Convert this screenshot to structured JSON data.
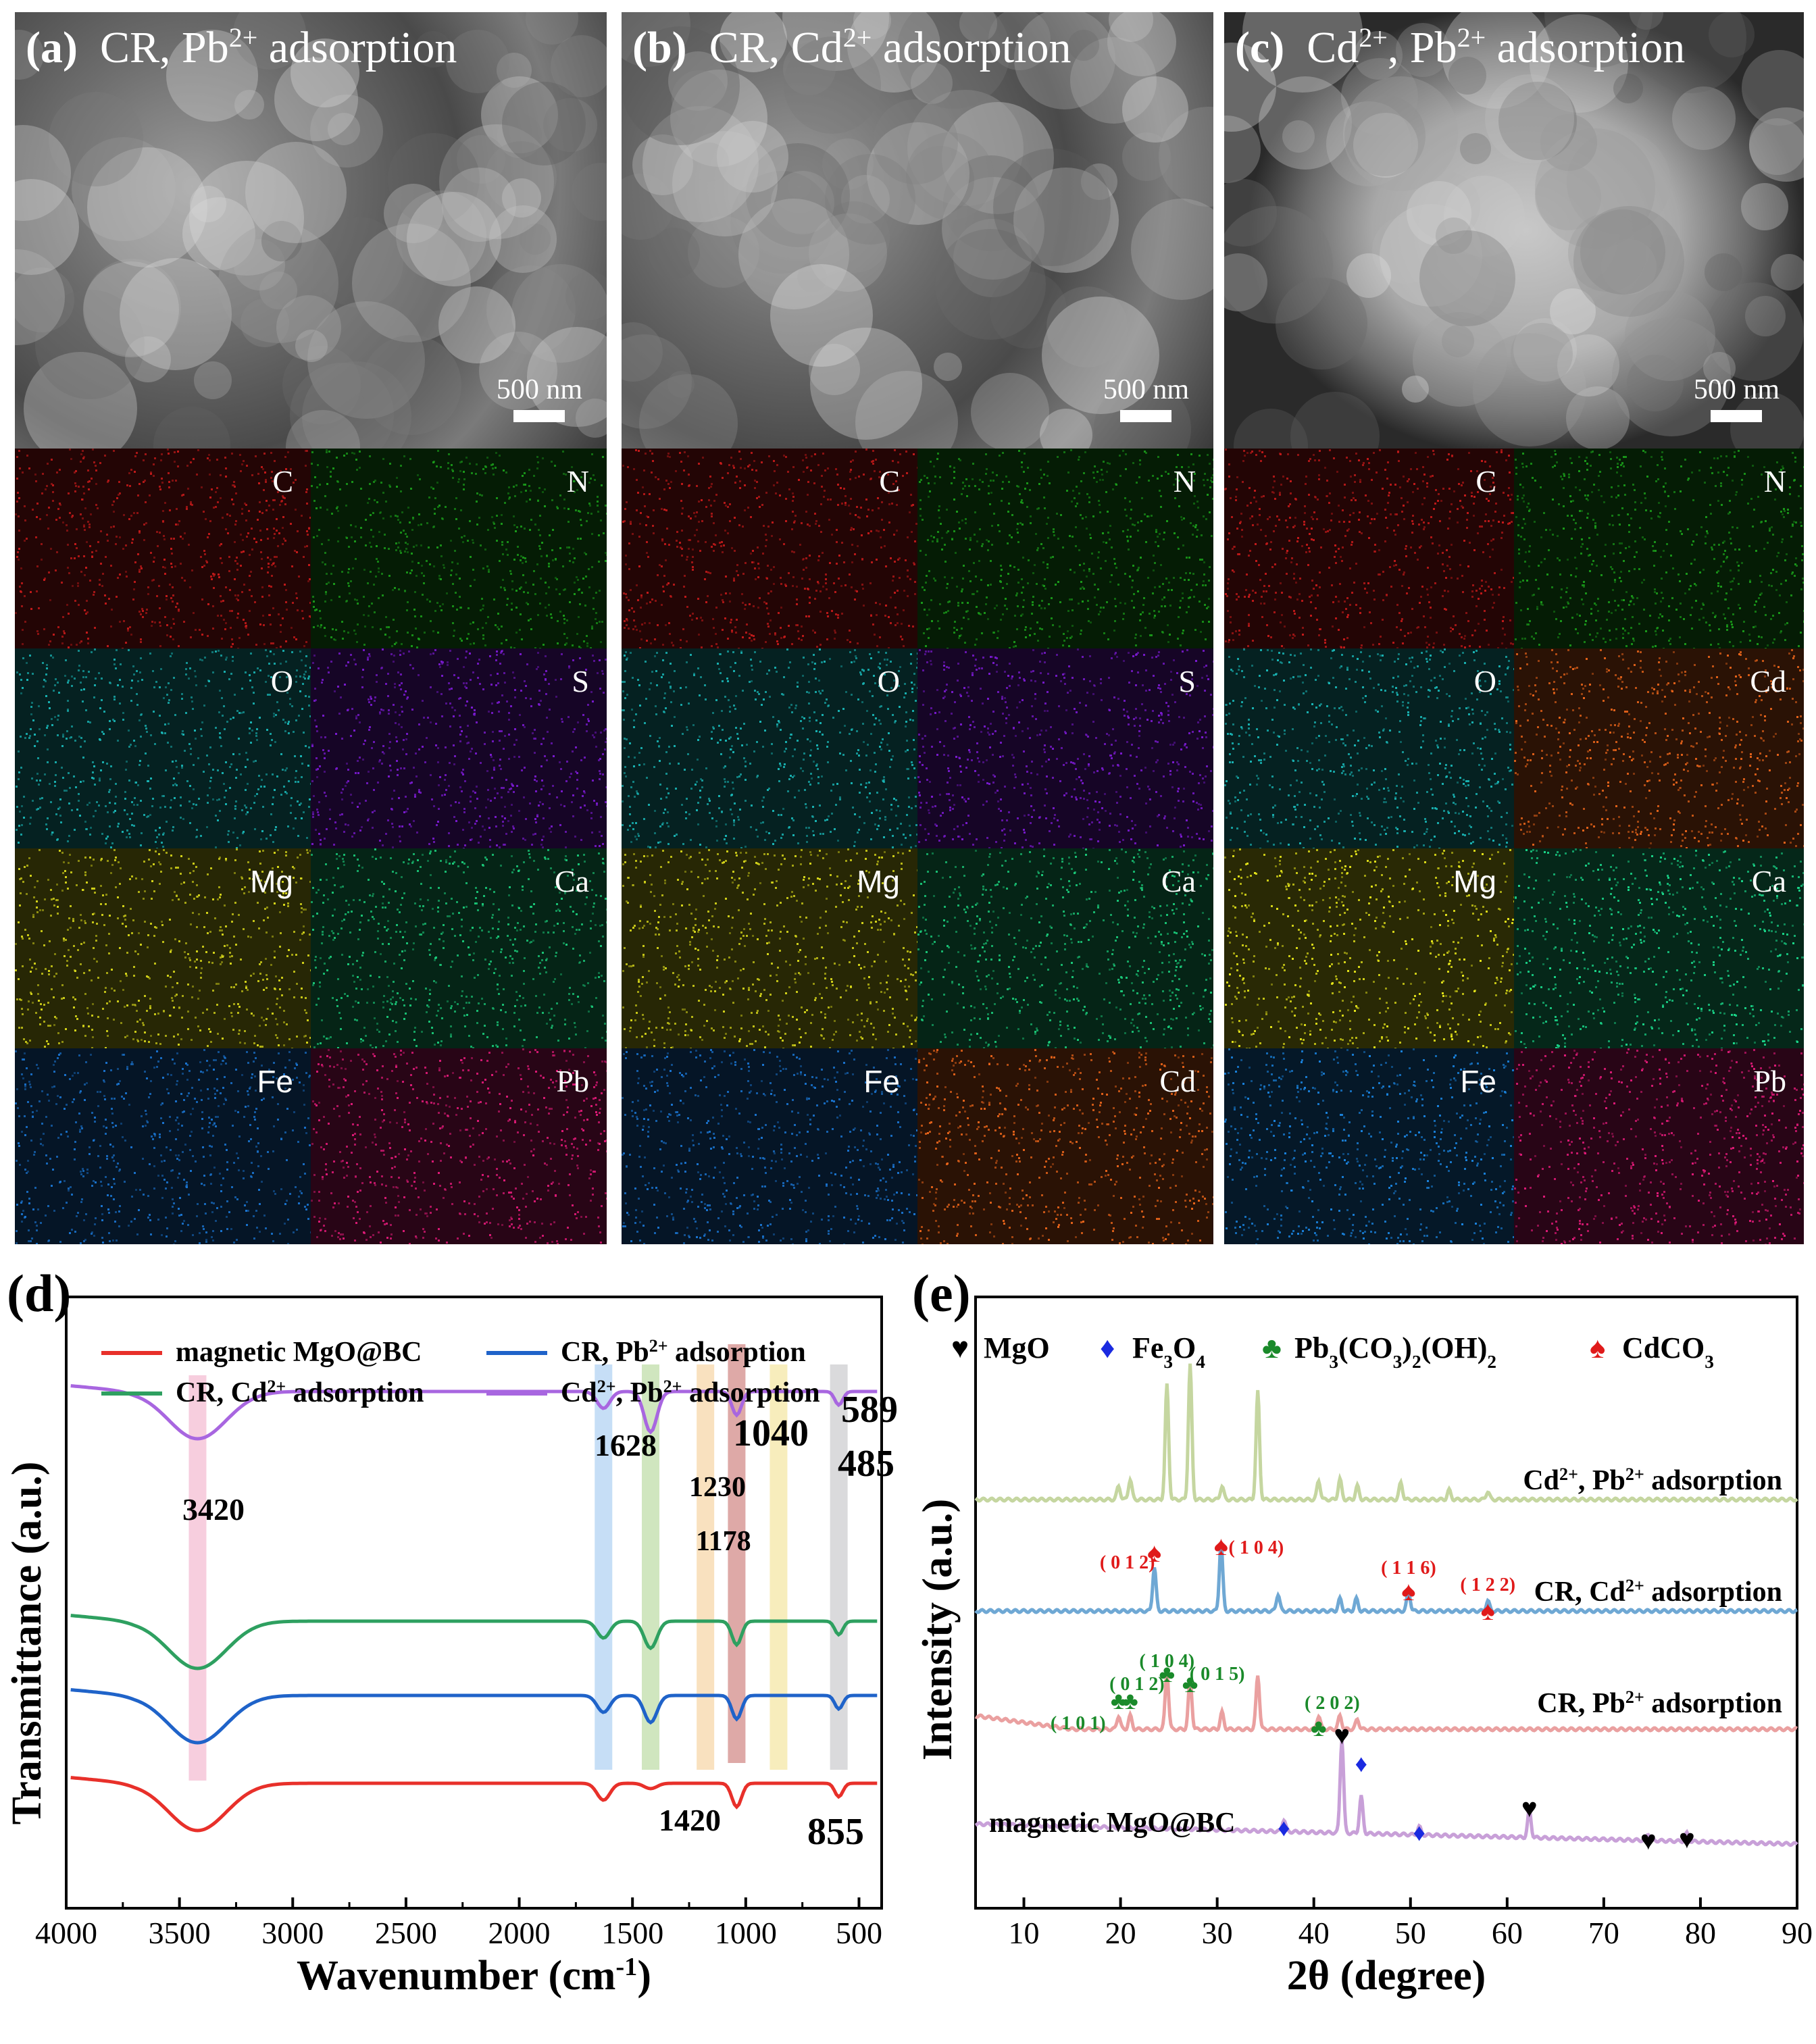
{
  "panels": {
    "a": {
      "label": "(a)",
      "title": "CR, Pb",
      "title_sup": "2+",
      "title_tail": " adsorption",
      "scale": "500 nm",
      "tiles": [
        {
          "el": "C",
          "color": "#c41a1a"
        },
        {
          "el": "N",
          "color": "#1a9a1a"
        },
        {
          "el": "O",
          "color": "#19b5b5"
        },
        {
          "el": "S",
          "color": "#7a1ad0"
        },
        {
          "el": "Mg",
          "color": "#d6d61a"
        },
        {
          "el": "Ca",
          "color": "#1ac878"
        },
        {
          "el": "Fe",
          "color": "#1a74d0"
        },
        {
          "el": "Pb",
          "color": "#e01a78"
        }
      ]
    },
    "b": {
      "label": "(b)",
      "title": "CR, Cd",
      "title_sup": "2+",
      "title_tail": " adsorption",
      "scale": "500 nm",
      "tiles": [
        {
          "el": "C",
          "color": "#c41a1a"
        },
        {
          "el": "N",
          "color": "#1a9a1a"
        },
        {
          "el": "O",
          "color": "#19b5b5"
        },
        {
          "el": "S",
          "color": "#7a1ad0"
        },
        {
          "el": "Mg",
          "color": "#d6d61a"
        },
        {
          "el": "Ca",
          "color": "#1ac878"
        },
        {
          "el": "Fe",
          "color": "#1a74d0"
        },
        {
          "el": "Cd",
          "color": "#e8641a"
        }
      ]
    },
    "c": {
      "label": "(c)",
      "title": "Cd",
      "title_sup": "2+",
      "title_mid": ", Pb",
      "title_sup2": "2+",
      "title_tail": " adsorption",
      "scale": "500 nm",
      "tiles": [
        {
          "el": "C",
          "color": "#c41a1a"
        },
        {
          "el": "N",
          "color": "#1a9a1a"
        },
        {
          "el": "O",
          "color": "#19b5b5"
        },
        {
          "el": "Cd",
          "color": "#e8641a"
        },
        {
          "el": "Mg",
          "color": "#e6e61a"
        },
        {
          "el": "Ca",
          "color": "#1ad88a"
        },
        {
          "el": "Fe",
          "color": "#1a84e0"
        },
        {
          "el": "Pb",
          "color": "#e01a78"
        }
      ]
    }
  },
  "ftir": {
    "label": "(d)",
    "ylabel": "Transmittance (a.u.)",
    "xlabel": "Wavenumber (cm",
    "xlabel_sup": "-1",
    "xlabel_tail": ")",
    "xticks": [
      4000,
      3500,
      3000,
      2500,
      2000,
      1500,
      1000,
      500
    ],
    "legend": [
      {
        "text": "magnetic MgO@BC",
        "color": "#e8302a"
      },
      {
        "text": "CR, Pb",
        "sup": "2+",
        "tail": " adsorption",
        "color": "#1f63c9"
      },
      {
        "text": "CR, Cd",
        "sup": "2+",
        "tail": " adsorption",
        "color": "#2ea060"
      },
      {
        "text": "Cd",
        "sup": "2+",
        "mid": ", Pb",
        "sup2": "2+",
        "tail": " adsorption",
        "color": "#a866e0"
      }
    ],
    "peaks": [
      "3420",
      "1628",
      "1230",
      "1178",
      "1040",
      "589",
      "485",
      "1420",
      "855"
    ],
    "bands": [
      {
        "wn": 3420,
        "color": "#f6c6d8"
      },
      {
        "wn": 1628,
        "color": "#bcd8f4"
      },
      {
        "wn": 1420,
        "color": "#c8e2b4"
      },
      {
        "wn": 1178,
        "color": "#f8dcb4"
      },
      {
        "wn": 1040,
        "color": "#d89a98"
      },
      {
        "wn": 855,
        "color": "#f6eab0"
      },
      {
        "wn": 589,
        "color": "#d4d4d6"
      }
    ]
  },
  "xrd": {
    "label": "(e)",
    "ylabel": "Intensity (a.u.)",
    "xlabel": "2θ (degree)",
    "xticks": [
      10,
      20,
      30,
      40,
      50,
      60,
      70,
      80,
      90
    ],
    "legend": [
      {
        "symbol": "♥",
        "color": "#000000",
        "text": "MgO"
      },
      {
        "symbol": "♦",
        "color": "#1a2ae0",
        "text": "Fe",
        "sub": "3",
        "text2": "O",
        "sub2": "4"
      },
      {
        "symbol": "♣",
        "color": "#1a8a2a",
        "text": "Pb",
        "sub": "3",
        "text2": "(CO",
        "sub2": "3",
        "text3": ")",
        "sub3": "2",
        "text4": "(OH)",
        "sub4": "2"
      },
      {
        "symbol": "♠",
        "color": "#e01a1a",
        "text": "CdCO",
        "sub": "3"
      }
    ],
    "curve_labels": [
      {
        "text": "Cd",
        "sup": "2+",
        "mid": ", Pb",
        "sup2": "2+",
        "tail": " adsorption"
      },
      {
        "text": "CR, Cd",
        "sup": "2+",
        "tail": " adsorption"
      },
      {
        "text": "CR, Pb",
        "sup": "2+",
        "tail": " adsorption"
      },
      {
        "text": "magnetic MgO@BC"
      }
    ],
    "curve_colors": [
      "#c5d6a0",
      "#6fa8d4",
      "#eaa0a0",
      "#c8a0d8"
    ],
    "cdco3_markers": [
      {
        "x": 23.5,
        "hkl": "( 0 1 2)"
      },
      {
        "x": 30.4,
        "hkl": "( 1 0 4)"
      },
      {
        "x": 49.8,
        "hkl": "( 1 1 6)"
      },
      {
        "x": 58.0,
        "hkl": "( 1 2 2)"
      }
    ],
    "pb_markers": [
      {
        "x": 19.8,
        "hkl": "( 1 0 1)"
      },
      {
        "x": 21.0,
        "hkl": "( 0 1 2)"
      },
      {
        "x": 24.8,
        "hkl": "( 1 0 4)"
      },
      {
        "x": 27.2,
        "hkl": "( 0 1 5)"
      },
      {
        "x": 40.5,
        "hkl": "( 2 0 2)"
      }
    ],
    "mgo_markers": [
      42.9,
      62.3,
      74.6,
      78.6
    ],
    "fe3o4_markers": [
      36.9,
      44.9,
      50.9
    ]
  }
}
